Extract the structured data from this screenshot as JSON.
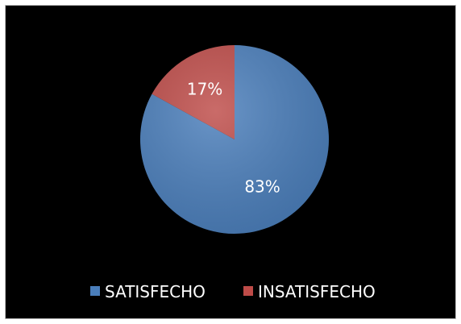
{
  "chart_data": {
    "type": "pie",
    "categories": [
      "SATISFECHO",
      "INSATISFECHO"
    ],
    "values": [
      83,
      17
    ],
    "data_labels": [
      "83%",
      "17%"
    ],
    "colors": [
      "#4a7ebb",
      "#be4b48"
    ],
    "legend": {
      "placement": "bottom",
      "entries": [
        "SATISFECHO",
        "INSATISFECHO"
      ]
    },
    "title": ""
  }
}
